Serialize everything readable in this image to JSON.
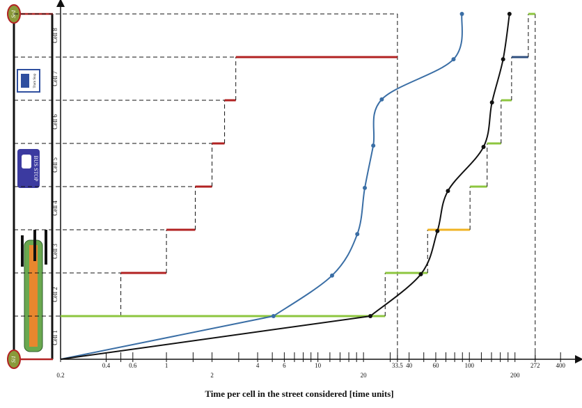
{
  "street": {
    "source": "So1",
    "sink": "Si1",
    "bus_stop": "BUS STOP",
    "tram_stop": "Tram Stop"
  },
  "chart_data": {
    "type": "line",
    "xscale": "log",
    "xlabel": "Time per cell in the street considered [time units]",
    "xlim": [
      0.2,
      520
    ],
    "ylim": [
      0,
      8
    ],
    "xticks": [
      0.2,
      0.4,
      0.6,
      1,
      2,
      4,
      6,
      10,
      20,
      33.5,
      40,
      60,
      100,
      200,
      272,
      400
    ],
    "minor_xticks": [
      0.5,
      1.5,
      3,
      5,
      7,
      8,
      9,
      12,
      14,
      16,
      18,
      30,
      50,
      70,
      80,
      90,
      120,
      140,
      160,
      180
    ],
    "yticks": [
      0,
      1,
      2,
      3,
      4,
      5,
      6,
      7,
      8
    ],
    "cell_labels": [
      "Cell 1",
      "Cell 2",
      "Cell 3",
      "Cell 4",
      "Cell 5",
      "Cell 6",
      "Cell 7",
      "Cell 8"
    ],
    "steps": [
      {
        "color": "#b22222",
        "x": [
          0.5,
          1,
          1.55,
          2,
          2.42,
          2.87,
          33.5
        ]
      },
      {
        "colors": [
          "#8dc63f",
          "#8dc63f",
          "#f0b323",
          "#8dc63f",
          "#8dc63f",
          "#8dc63f",
          "#2f4f7f",
          "#8dc63f"
        ],
        "x": [
          27.8,
          53,
          101,
          131,
          162,
          190,
          245,
          272
        ]
      }
    ],
    "series": [
      {
        "color": "#3a6ea5",
        "x": [
          0.2,
          5.09,
          12.4,
          18.2,
          20.4,
          23.2,
          26.4,
          78.6,
          89.3
        ],
        "values": [
          0,
          1,
          1.94,
          2.9,
          3.97,
          4.95,
          6.02,
          6.95,
          8
        ]
      },
      {
        "color": "#111111",
        "x": [
          0.2,
          22.2,
          47.8,
          61.5,
          72.2,
          124,
          141,
          167,
          184
        ],
        "values": [
          0,
          1,
          1.97,
          2.97,
          3.9,
          4.92,
          5.95,
          6.95,
          8
        ]
      }
    ],
    "marker_lines": [
      33.5,
      272
    ]
  }
}
